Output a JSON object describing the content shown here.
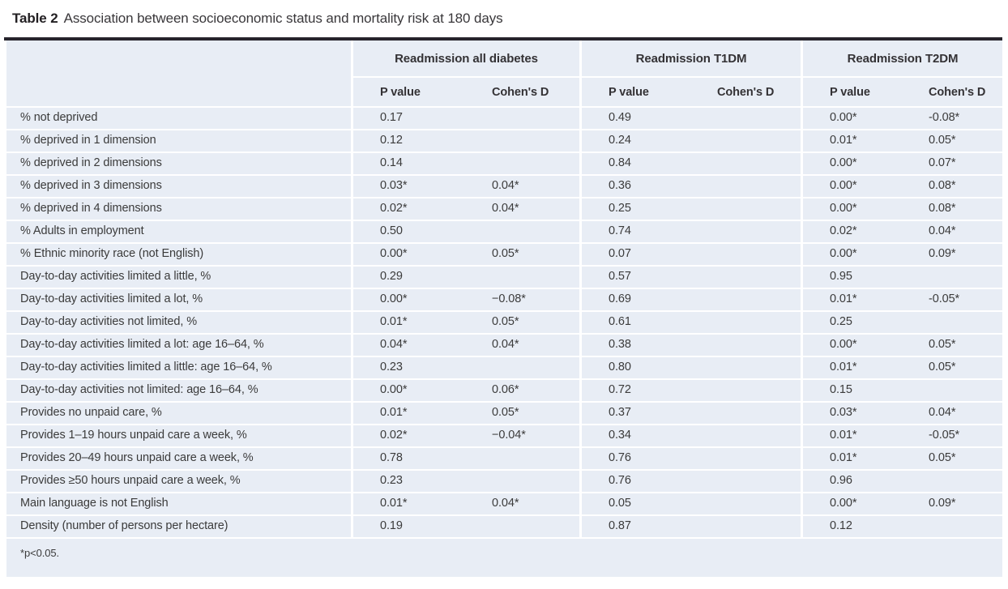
{
  "caption": {
    "label": "Table 2",
    "text": "Association between socioeconomic status and mortality risk at 180 days"
  },
  "columns": {
    "row_header": "",
    "groups": [
      {
        "label": "Readmission all diabetes"
      },
      {
        "label": "Readmission T1DM"
      },
      {
        "label": "Readmission T2DM"
      }
    ],
    "subheaders": {
      "p": "P value",
      "d": "Cohen's D"
    }
  },
  "rows": [
    {
      "label": "% not deprived",
      "values": [
        "0.17",
        "",
        "0.49",
        "",
        "0.00*",
        "-0.08*"
      ]
    },
    {
      "label": "% deprived in 1 dimension",
      "values": [
        "0.12",
        "",
        "0.24",
        "",
        "0.01*",
        "0.05*"
      ]
    },
    {
      "label": "% deprived in 2 dimensions",
      "values": [
        "0.14",
        "",
        "0.84",
        "",
        "0.00*",
        "0.07*"
      ]
    },
    {
      "label": "% deprived in 3 dimensions",
      "values": [
        "0.03*",
        "0.04*",
        "0.36",
        "",
        "0.00*",
        "0.08*"
      ]
    },
    {
      "label": "% deprived in 4 dimensions",
      "values": [
        "0.02*",
        "0.04*",
        "0.25",
        "",
        "0.00*",
        "0.08*"
      ]
    },
    {
      "label": "% Adults in employment",
      "values": [
        "0.50",
        "",
        "0.74",
        "",
        "0.02*",
        "0.04*"
      ]
    },
    {
      "label": "% Ethnic minority race (not English)",
      "values": [
        "0.00*",
        "0.05*",
        "0.07",
        "",
        "0.00*",
        "0.09*"
      ]
    },
    {
      "label": "Day-to-day activities limited a little, %",
      "values": [
        "0.29",
        "",
        "0.57",
        "",
        "0.95",
        ""
      ]
    },
    {
      "label": "Day-to-day activities limited a lot, %",
      "values": [
        "0.00*",
        "−0.08*",
        "0.69",
        "",
        "0.01*",
        "-0.05*"
      ]
    },
    {
      "label": "Day-to-day activities not limited, %",
      "values": [
        "0.01*",
        "0.05*",
        "0.61",
        "",
        "0.25",
        ""
      ]
    },
    {
      "label": "Day-to-day activities limited a lot: age 16–64, %",
      "values": [
        "0.04*",
        "0.04*",
        "0.38",
        "",
        "0.00*",
        "0.05*"
      ]
    },
    {
      "label": "Day-to-day activities limited a little: age 16–64, %",
      "values": [
        "0.23",
        "",
        "0.80",
        "",
        "0.01*",
        "0.05*"
      ]
    },
    {
      "label": "Day-to-day activities not limited: age 16–64, %",
      "values": [
        "0.00*",
        "0.06*",
        "0.72",
        "",
        "0.15",
        ""
      ]
    },
    {
      "label": "Provides no unpaid care, %",
      "values": [
        "0.01*",
        "0.05*",
        "0.37",
        "",
        "0.03*",
        "0.04*"
      ]
    },
    {
      "label": "Provides 1–19 hours unpaid care a week, %",
      "values": [
        "0.02*",
        "−0.04*",
        "0.34",
        "",
        "0.01*",
        "-0.05*"
      ]
    },
    {
      "label": "Provides 20–49 hours unpaid care a week, %",
      "values": [
        "0.78",
        "",
        "0.76",
        "",
        "0.01*",
        "0.05*"
      ]
    },
    {
      "label": "Provides ≥50 hours unpaid care a week, %",
      "values": [
        "0.23",
        "",
        "0.76",
        "",
        "0.96",
        ""
      ]
    },
    {
      "label": "Main language is not English",
      "values": [
        "0.01*",
        "0.04*",
        "0.05",
        "",
        "0.00*",
        "0.09*"
      ]
    },
    {
      "label": "Density (number of persons per hectare)",
      "values": [
        "0.19",
        "",
        "0.87",
        "",
        "0.12",
        ""
      ]
    }
  ],
  "footnote": "*p<0.05.",
  "colors": {
    "page_bg": "#ffffff",
    "table_bg": "#e8edf5",
    "grid_line": "#ffffff",
    "top_rule": "#26242c",
    "text": "#3b3b3b"
  }
}
